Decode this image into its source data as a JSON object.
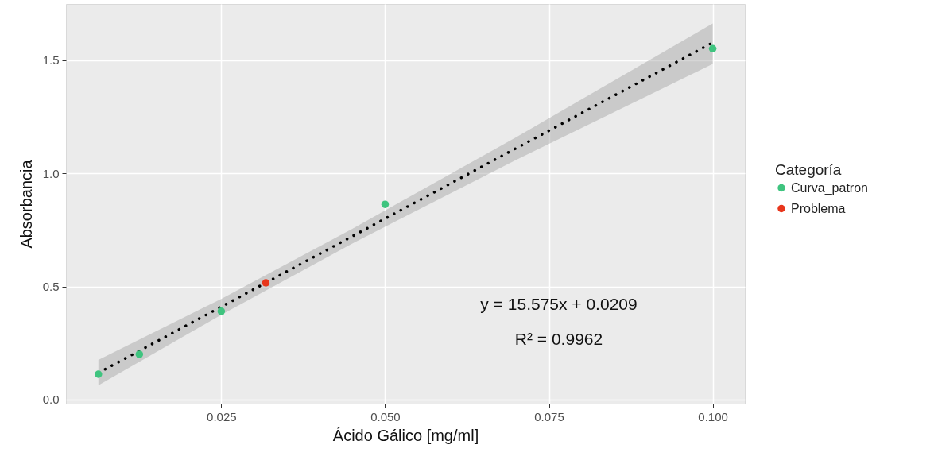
{
  "chart_data": {
    "type": "scatter",
    "xlabel": "Ácido Gálico [mg/ml]",
    "ylabel": "Absorbancia",
    "legend_title": "Categoría",
    "xlim": [
      0.0013,
      0.1049
    ],
    "ylim": [
      -0.018,
      1.749
    ],
    "xticks": [
      0.025,
      {
        "value": 0.05,
        "label": "0.050"
      },
      0.075,
      {
        "value": 0.1,
        "label": "0.100"
      }
    ],
    "yticks": [
      {
        "value": 0,
        "label": "0.0"
      },
      0.5,
      {
        "value": 1,
        "label": "1.0"
      },
      1.5
    ],
    "grid": true,
    "legend": "right",
    "marker": "circle",
    "series": [
      {
        "name": "Curva_patron",
        "color": "#3fc47f",
        "x": [
          0.00625,
          0.0125,
          0.025,
          0.05,
          0.1
        ],
        "values": [
          0.112,
          0.2,
          0.39,
          0.863,
          1.551
        ]
      },
      {
        "name": "Problema",
        "color": "#e8361c",
        "x": [
          0.0318
        ],
        "values": [
          0.516
        ]
      },
      {
        "type": "line",
        "marker": "none",
        "color": "#000000",
        "line_style": "dotted",
        "x": [
          0.00625,
          0.025,
          0.045,
          0.07,
          0.1
        ],
        "values": [
          0.118,
          0.41,
          0.722,
          1.111,
          1.578
        ],
        "lower": [
          0.063,
          0.375,
          0.69,
          1.06,
          1.484
        ],
        "upper": [
          0.175,
          0.445,
          0.755,
          1.16,
          1.663
        ]
      }
    ],
    "annotations": [
      "y = 15.575x + 0.0209",
      "R² = 0.9962"
    ]
  }
}
